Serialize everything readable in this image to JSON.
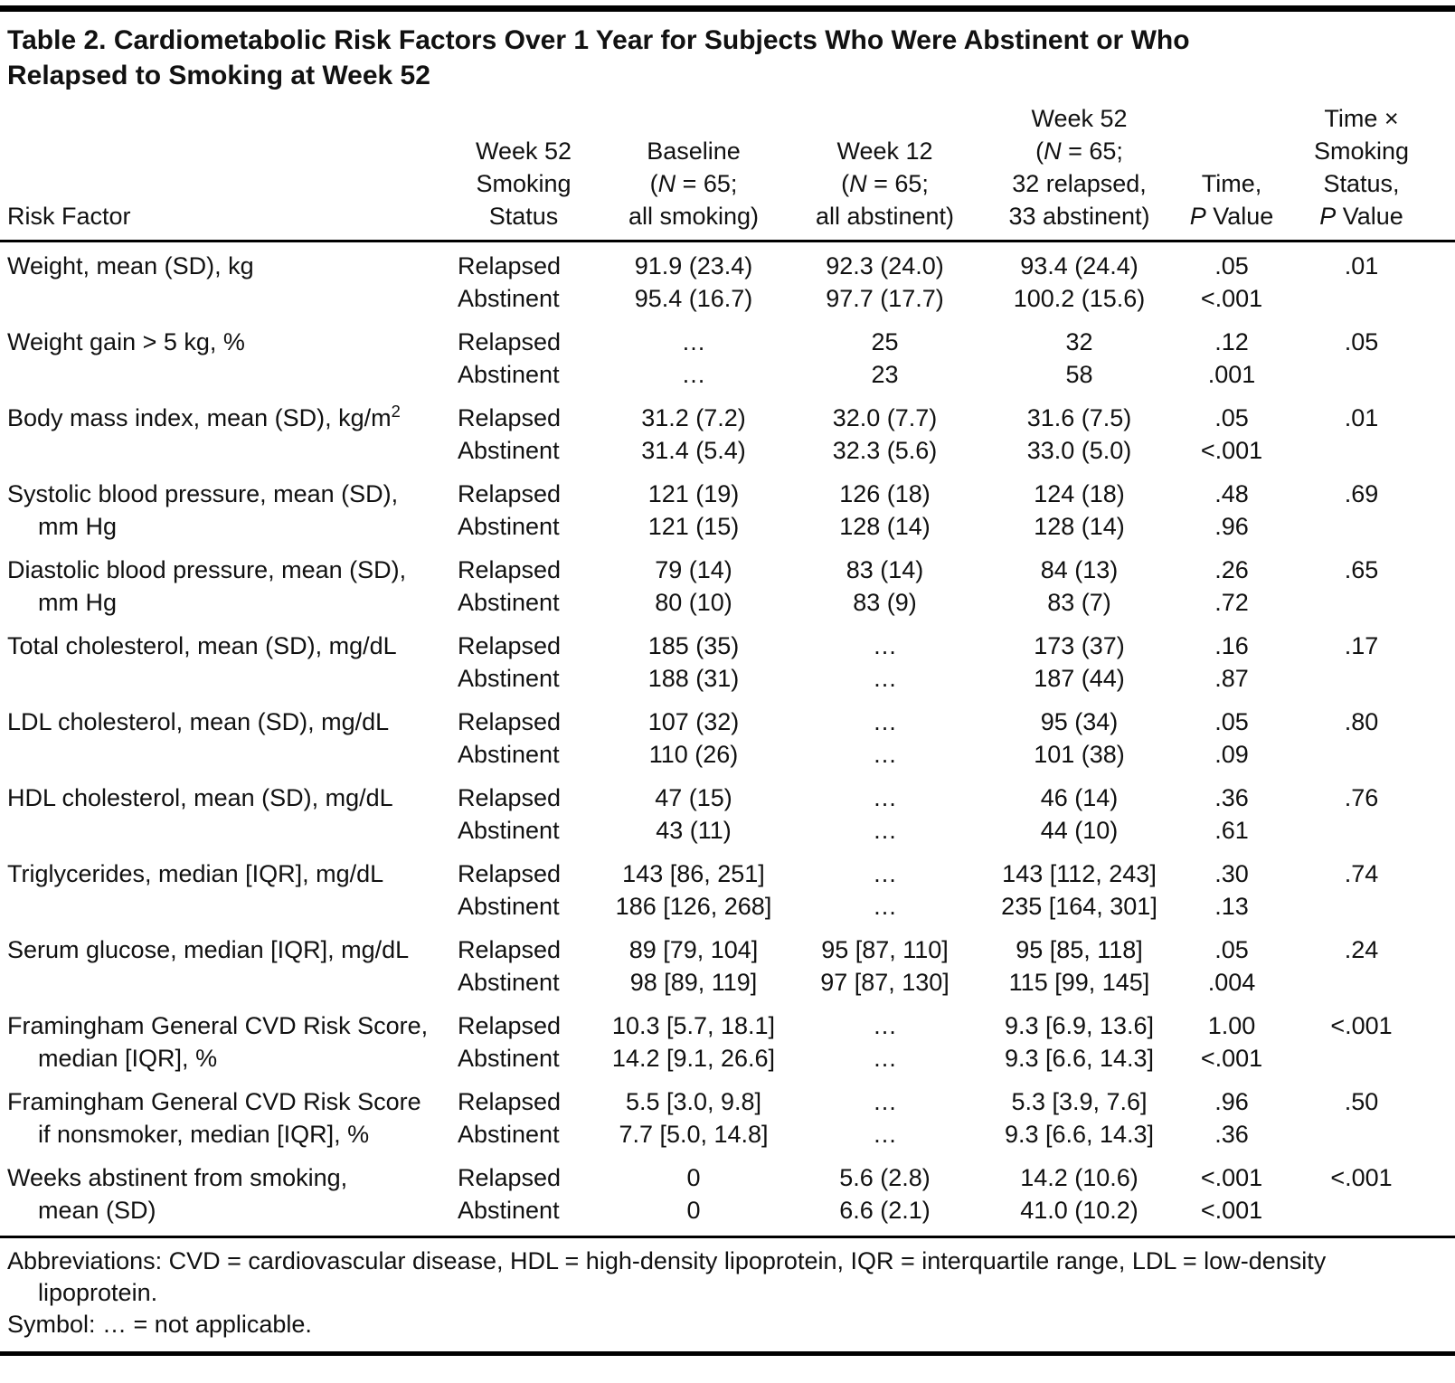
{
  "page": {
    "title_line1": "Table 2. Cardiometabolic Risk Factors Over 1 Year for Subjects Who Were Abstinent or Who",
    "title_line2": "Relapsed to Smoking at Week 52"
  },
  "table": {
    "columns": {
      "risk_factor": "Risk Factor",
      "smoking_status_lines": [
        "Week 52",
        "Smoking",
        "Status"
      ],
      "baseline_lines": [
        "Baseline",
        "(*N* = 65;",
        "all smoking)"
      ],
      "week12_lines": [
        "Week 12",
        "(*N* = 65;",
        "all abstinent)"
      ],
      "week52_lines": [
        "Week 52",
        "(*N* = 65;",
        "32 relapsed,",
        "33 abstinent)"
      ],
      "time_lines": [
        "Time,",
        "*P* Value"
      ],
      "interaction_lines": [
        "Time ×",
        "Smoking",
        "Status,",
        "*P* Value"
      ]
    },
    "groups": [
      {
        "name_lines": [
          "Weight, mean (SD), kg"
        ],
        "rows": [
          {
            "status": "Relapsed",
            "baseline": "91.9 (23.4)",
            "week12": "92.3 (24.0)",
            "week52": "93.4 (24.4)",
            "time_p": ".05",
            "interaction_p": ".01"
          },
          {
            "status": "Abstinent",
            "baseline": "95.4 (16.7)",
            "week12": "97.7 (17.7)",
            "week52": "100.2 (15.6)",
            "time_p": "<.001",
            "interaction_p": ""
          }
        ]
      },
      {
        "name_lines": [
          "Weight gain > 5 kg, %"
        ],
        "rows": [
          {
            "status": "Relapsed",
            "baseline": "…",
            "week12": "25",
            "week52": "32",
            "time_p": ".12",
            "interaction_p": ".05"
          },
          {
            "status": "Abstinent",
            "baseline": "…",
            "week12": "23",
            "week52": "58",
            "time_p": ".001",
            "interaction_p": ""
          }
        ]
      },
      {
        "name_lines": [
          "Body mass index, mean (SD), kg/m^2^"
        ],
        "rows": [
          {
            "status": "Relapsed",
            "baseline": "31.2 (7.2)",
            "week12": "32.0 (7.7)",
            "week52": "31.6 (7.5)",
            "time_p": ".05",
            "interaction_p": ".01"
          },
          {
            "status": "Abstinent",
            "baseline": "31.4 (5.4)",
            "week12": "32.3 (5.6)",
            "week52": "33.0 (5.0)",
            "time_p": "<.001",
            "interaction_p": ""
          }
        ]
      },
      {
        "name_lines": [
          "Systolic blood pressure, mean (SD),",
          "mm Hg"
        ],
        "rows": [
          {
            "status": "Relapsed",
            "baseline": "121 (19)",
            "week12": "126 (18)",
            "week52": "124 (18)",
            "time_p": ".48",
            "interaction_p": ".69"
          },
          {
            "status": "Abstinent",
            "baseline": "121 (15)",
            "week12": "128 (14)",
            "week52": "128 (14)",
            "time_p": ".96",
            "interaction_p": ""
          }
        ]
      },
      {
        "name_lines": [
          "Diastolic blood pressure, mean (SD),",
          "mm Hg"
        ],
        "rows": [
          {
            "status": "Relapsed",
            "baseline": "79 (14)",
            "week12": "83 (14)",
            "week52": "84 (13)",
            "time_p": ".26",
            "interaction_p": ".65"
          },
          {
            "status": "Abstinent",
            "baseline": "80 (10)",
            "week12": "83 (9)",
            "week52": "83 (7)",
            "time_p": ".72",
            "interaction_p": ""
          }
        ]
      },
      {
        "name_lines": [
          "Total cholesterol, mean (SD), mg/dL"
        ],
        "rows": [
          {
            "status": "Relapsed",
            "baseline": "185 (35)",
            "week12": "…",
            "week52": "173 (37)",
            "time_p": ".16",
            "interaction_p": ".17"
          },
          {
            "status": "Abstinent",
            "baseline": "188 (31)",
            "week12": "…",
            "week52": "187 (44)",
            "time_p": ".87",
            "interaction_p": ""
          }
        ]
      },
      {
        "name_lines": [
          "LDL cholesterol, mean (SD), mg/dL"
        ],
        "rows": [
          {
            "status": "Relapsed",
            "baseline": "107 (32)",
            "week12": "…",
            "week52": "95 (34)",
            "time_p": ".05",
            "interaction_p": ".80"
          },
          {
            "status": "Abstinent",
            "baseline": "110 (26)",
            "week12": "…",
            "week52": "101 (38)",
            "time_p": ".09",
            "interaction_p": ""
          }
        ]
      },
      {
        "name_lines": [
          "HDL cholesterol, mean (SD), mg/dL"
        ],
        "rows": [
          {
            "status": "Relapsed",
            "baseline": "47 (15)",
            "week12": "…",
            "week52": "46 (14)",
            "time_p": ".36",
            "interaction_p": ".76"
          },
          {
            "status": "Abstinent",
            "baseline": "43 (11)",
            "week12": "…",
            "week52": "44 (10)",
            "time_p": ".61",
            "interaction_p": ""
          }
        ]
      },
      {
        "name_lines": [
          "Triglycerides, median [IQR], mg/dL"
        ],
        "rows": [
          {
            "status": "Relapsed",
            "baseline": "143 [86, 251]",
            "week12": "…",
            "week52": "143 [112, 243]",
            "time_p": ".30",
            "interaction_p": ".74"
          },
          {
            "status": "Abstinent",
            "baseline": "186 [126, 268]",
            "week12": "…",
            "week52": "235 [164, 301]",
            "time_p": ".13",
            "interaction_p": ""
          }
        ]
      },
      {
        "name_lines": [
          "Serum glucose, median [IQR], mg/dL"
        ],
        "rows": [
          {
            "status": "Relapsed",
            "baseline": "89 [79, 104]",
            "week12": "95 [87, 110]",
            "week52": "95 [85, 118]",
            "time_p": ".05",
            "interaction_p": ".24"
          },
          {
            "status": "Abstinent",
            "baseline": "98 [89, 119]",
            "week12": "97 [87, 130]",
            "week52": "115 [99, 145]",
            "time_p": ".004",
            "interaction_p": ""
          }
        ]
      },
      {
        "name_lines": [
          "Framingham General CVD Risk Score,",
          "median [IQR], %"
        ],
        "rows": [
          {
            "status": "Relapsed",
            "baseline": "10.3 [5.7, 18.1]",
            "week12": "…",
            "week52": "9.3 [6.9, 13.6]",
            "time_p": "1.00",
            "interaction_p": "<.001"
          },
          {
            "status": "Abstinent",
            "baseline": "14.2 [9.1, 26.6]",
            "week12": "…",
            "week52": "9.3 [6.6, 14.3]",
            "time_p": "<.001",
            "interaction_p": ""
          }
        ]
      },
      {
        "name_lines": [
          "Framingham General CVD Risk Score",
          "if nonsmoker, median [IQR], %"
        ],
        "rows": [
          {
            "status": "Relapsed",
            "baseline": "5.5 [3.0, 9.8]",
            "week12": "…",
            "week52": "5.3 [3.9, 7.6]",
            "time_p": ".96",
            "interaction_p": ".50"
          },
          {
            "status": "Abstinent",
            "baseline": "7.7 [5.0, 14.8]",
            "week12": "…",
            "week52": "9.3 [6.6, 14.3]",
            "time_p": ".36",
            "interaction_p": ""
          }
        ]
      },
      {
        "name_lines": [
          "Weeks abstinent from smoking,",
          "mean (SD)"
        ],
        "rows": [
          {
            "status": "Relapsed",
            "baseline": "0",
            "week12": "5.6 (2.8)",
            "week52": "14.2 (10.6)",
            "time_p": "<.001",
            "interaction_p": "<.001"
          },
          {
            "status": "Abstinent",
            "baseline": "0",
            "week12": "6.6 (2.1)",
            "week52": "41.0 (10.2)",
            "time_p": "<.001",
            "interaction_p": ""
          }
        ]
      }
    ]
  },
  "footnotes": {
    "abbreviations": "Abbreviations: CVD = cardiovascular disease, HDL = high-density lipoprotein, IQR = interquartile range, LDL = low-density lipoprotein.",
    "symbol": "Symbol: … = not applicable."
  }
}
